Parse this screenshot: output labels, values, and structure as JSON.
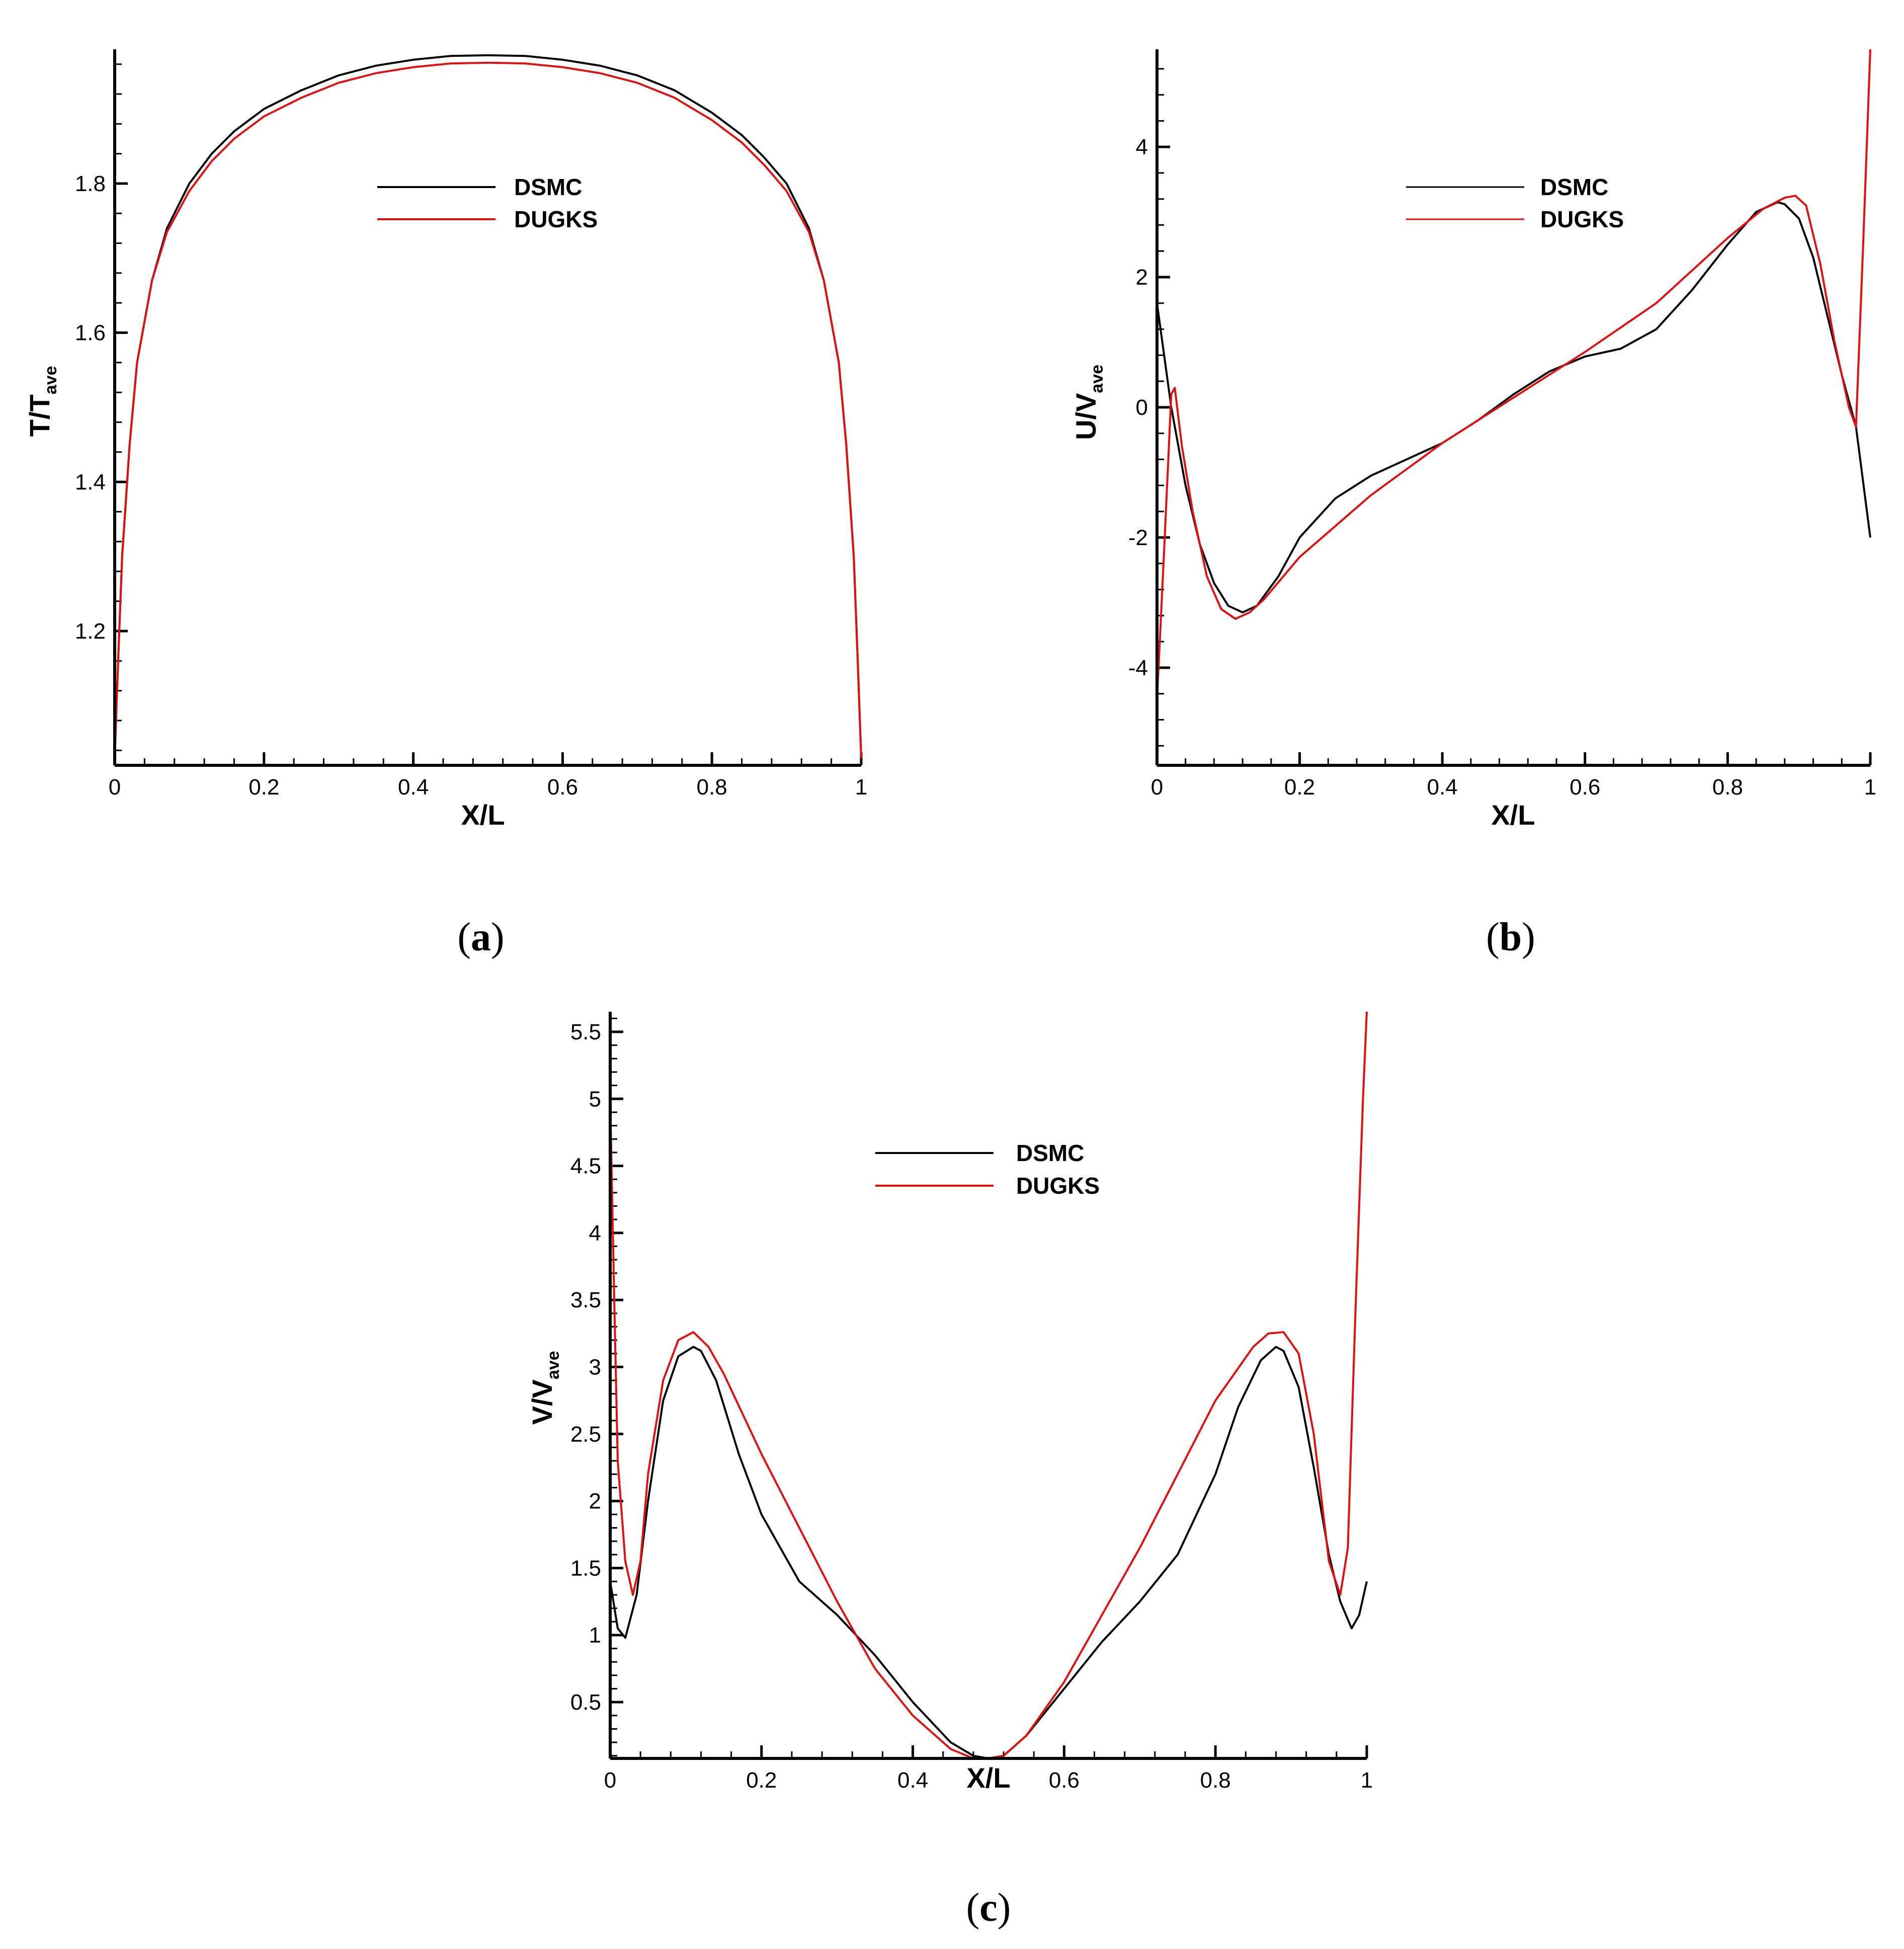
{
  "chart_data": [
    {
      "panel": "a",
      "type": "line",
      "caption": {
        "open": "(",
        "letter": "a",
        "close": ")"
      },
      "xlabel": "X/L",
      "ylabel": {
        "main": "T/T",
        "sub": "ave"
      },
      "xlim": [
        0,
        1
      ],
      "ylim": [
        1.02,
        1.98
      ],
      "xticks": [
        0,
        0.2,
        0.4,
        0.6,
        0.8,
        1
      ],
      "xtick_labels": [
        "0",
        "0.2",
        "0.4",
        "0.6",
        "0.8",
        "1"
      ],
      "yticks": [
        1.2,
        1.4,
        1.6,
        1.8
      ],
      "ytick_labels": [
        "1.2",
        "1.4",
        "1.6",
        "1.8"
      ],
      "legend": {
        "placement": "upper-center"
      },
      "series": [
        {
          "name": "DSMC",
          "color": "#000000",
          "x": [
            0,
            0.005,
            0.01,
            0.02,
            0.03,
            0.05,
            0.07,
            0.1,
            0.13,
            0.16,
            0.2,
            0.25,
            0.3,
            0.35,
            0.4,
            0.45,
            0.5,
            0.55,
            0.6,
            0.65,
            0.7,
            0.75,
            0.8,
            0.84,
            0.87,
            0.9,
            0.93,
            0.95,
            0.97,
            0.98,
            0.99,
            0.995,
            1
          ],
          "y": [
            1.03,
            1.17,
            1.3,
            1.45,
            1.56,
            1.67,
            1.74,
            1.8,
            1.84,
            1.87,
            1.9,
            1.925,
            1.945,
            1.958,
            1.966,
            1.971,
            1.972,
            1.971,
            1.966,
            1.958,
            1.945,
            1.925,
            1.895,
            1.865,
            1.835,
            1.8,
            1.74,
            1.67,
            1.56,
            1.45,
            1.3,
            1.17,
            1.03
          ]
        },
        {
          "name": "DUGKS",
          "color": "#e01010",
          "x": [
            0,
            0.005,
            0.01,
            0.02,
            0.03,
            0.05,
            0.07,
            0.1,
            0.13,
            0.16,
            0.2,
            0.25,
            0.3,
            0.35,
            0.4,
            0.45,
            0.5,
            0.55,
            0.6,
            0.65,
            0.7,
            0.75,
            0.8,
            0.84,
            0.87,
            0.9,
            0.93,
            0.95,
            0.97,
            0.98,
            0.99,
            0.995,
            1
          ],
          "y": [
            1.03,
            1.17,
            1.3,
            1.45,
            1.56,
            1.67,
            1.735,
            1.79,
            1.83,
            1.86,
            1.89,
            1.915,
            1.935,
            1.948,
            1.956,
            1.961,
            1.962,
            1.961,
            1.956,
            1.948,
            1.935,
            1.915,
            1.885,
            1.855,
            1.825,
            1.79,
            1.735,
            1.67,
            1.56,
            1.45,
            1.3,
            1.17,
            1.03
          ]
        }
      ]
    },
    {
      "panel": "b",
      "type": "line",
      "caption": {
        "open": "(",
        "letter": "b",
        "close": ")"
      },
      "xlabel": "X/L",
      "ylabel": {
        "main": "U/V",
        "sub": "ave"
      },
      "xlim": [
        0,
        1
      ],
      "ylim": [
        -5.5,
        5.5
      ],
      "xticks": [
        0,
        0.2,
        0.4,
        0.6,
        0.8,
        1
      ],
      "xtick_labels": [
        "0",
        "0.2",
        "0.4",
        "0.6",
        "0.8",
        "1"
      ],
      "yticks": [
        -4,
        -2,
        0,
        2,
        4
      ],
      "ytick_labels": [
        "-4",
        "-2",
        "0",
        "2",
        "4"
      ],
      "legend": {
        "placement": "upper-center"
      },
      "series": [
        {
          "name": "DSMC",
          "color": "#000000",
          "x": [
            0,
            0.01,
            0.02,
            0.04,
            0.06,
            0.08,
            0.1,
            0.12,
            0.14,
            0.17,
            0.2,
            0.25,
            0.3,
            0.35,
            0.4,
            0.45,
            0.5,
            0.55,
            0.6,
            0.65,
            0.7,
            0.75,
            0.8,
            0.84,
            0.87,
            0.88,
            0.9,
            0.92,
            0.94,
            0.96,
            0.98,
            1
          ],
          "y": [
            1.6,
            0.8,
            0.0,
            -1.2,
            -2.1,
            -2.7,
            -3.05,
            -3.15,
            -3.05,
            -2.6,
            -2.0,
            -1.4,
            -1.05,
            -0.8,
            -0.55,
            -0.2,
            0.2,
            0.55,
            0.78,
            0.9,
            1.2,
            1.8,
            2.5,
            3.0,
            3.15,
            3.12,
            2.9,
            2.3,
            1.4,
            0.5,
            -0.3,
            -2.0
          ]
        },
        {
          "name": "DUGKS",
          "color": "#e01010",
          "x": [
            0,
            0.01,
            0.02,
            0.025,
            0.035,
            0.05,
            0.07,
            0.09,
            0.11,
            0.13,
            0.15,
            0.2,
            0.3,
            0.4,
            0.5,
            0.6,
            0.7,
            0.8,
            0.85,
            0.88,
            0.895,
            0.91,
            0.93,
            0.95,
            0.97,
            0.98,
            0.99,
            1
          ],
          "y": [
            -4.5,
            -2.2,
            0.2,
            0.3,
            -0.6,
            -1.6,
            -2.6,
            -3.1,
            -3.25,
            -3.15,
            -2.95,
            -2.3,
            -1.35,
            -0.55,
            0.15,
            0.85,
            1.6,
            2.6,
            3.05,
            3.22,
            3.25,
            3.1,
            2.2,
            1.0,
            0.0,
            -0.3,
            2.5,
            5.5
          ]
        }
      ]
    },
    {
      "panel": "c",
      "type": "line",
      "caption": {
        "open": "(",
        "letter": "c",
        "close": ")"
      },
      "xlabel": "X/L",
      "ylabel": {
        "main": "V/V",
        "sub": "ave"
      },
      "xlim": [
        0,
        1
      ],
      "ylim": [
        0.08,
        5.65
      ],
      "xticks": [
        0,
        0.2,
        0.4,
        0.6,
        0.8,
        1
      ],
      "xtick_labels": [
        "0",
        "0.2",
        "0.4",
        "0.6",
        "0.8",
        "1"
      ],
      "yticks": [
        0.5,
        1,
        1.5,
        2,
        2.5,
        3,
        3.5,
        4,
        4.5,
        5,
        5.5
      ],
      "ytick_labels": [
        "0.5",
        "1",
        "1.5",
        "2",
        "2.5",
        "3",
        "3.5",
        "4",
        "4.5",
        "5",
        "5.5"
      ],
      "legend": {
        "placement": "upper-center"
      },
      "series": [
        {
          "name": "DSMC",
          "color": "#000000",
          "x": [
            0,
            0.01,
            0.02,
            0.035,
            0.05,
            0.07,
            0.09,
            0.11,
            0.12,
            0.14,
            0.17,
            0.2,
            0.25,
            0.3,
            0.35,
            0.4,
            0.45,
            0.48,
            0.5,
            0.52,
            0.55,
            0.6,
            0.65,
            0.7,
            0.75,
            0.8,
            0.83,
            0.86,
            0.88,
            0.89,
            0.91,
            0.93,
            0.95,
            0.965,
            0.98,
            0.99,
            1
          ],
          "y": [
            1.4,
            1.05,
            0.98,
            1.3,
            2.0,
            2.75,
            3.08,
            3.15,
            3.12,
            2.9,
            2.35,
            1.9,
            1.4,
            1.15,
            0.85,
            0.5,
            0.2,
            0.1,
            0.08,
            0.1,
            0.25,
            0.6,
            0.95,
            1.25,
            1.6,
            2.2,
            2.7,
            3.05,
            3.15,
            3.12,
            2.85,
            2.25,
            1.6,
            1.25,
            1.05,
            1.15,
            1.4
          ]
        },
        {
          "name": "DUGKS",
          "color": "#e01010",
          "x": [
            0,
            0.005,
            0.01,
            0.02,
            0.03,
            0.04,
            0.05,
            0.07,
            0.09,
            0.11,
            0.13,
            0.15,
            0.2,
            0.25,
            0.3,
            0.35,
            0.4,
            0.45,
            0.48,
            0.5,
            0.52,
            0.55,
            0.6,
            0.65,
            0.7,
            0.75,
            0.8,
            0.85,
            0.87,
            0.89,
            0.91,
            0.93,
            0.95,
            0.965,
            0.975,
            0.985,
            0.995,
            1
          ],
          "y": [
            5.0,
            3.6,
            2.3,
            1.55,
            1.3,
            1.55,
            2.2,
            2.9,
            3.2,
            3.26,
            3.15,
            2.95,
            2.35,
            1.8,
            1.25,
            0.75,
            0.4,
            0.15,
            0.08,
            0.08,
            0.1,
            0.25,
            0.65,
            1.15,
            1.65,
            2.2,
            2.75,
            3.15,
            3.25,
            3.26,
            3.1,
            2.5,
            1.55,
            1.3,
            1.65,
            3.4,
            5.0,
            5.65
          ]
        }
      ]
    }
  ]
}
